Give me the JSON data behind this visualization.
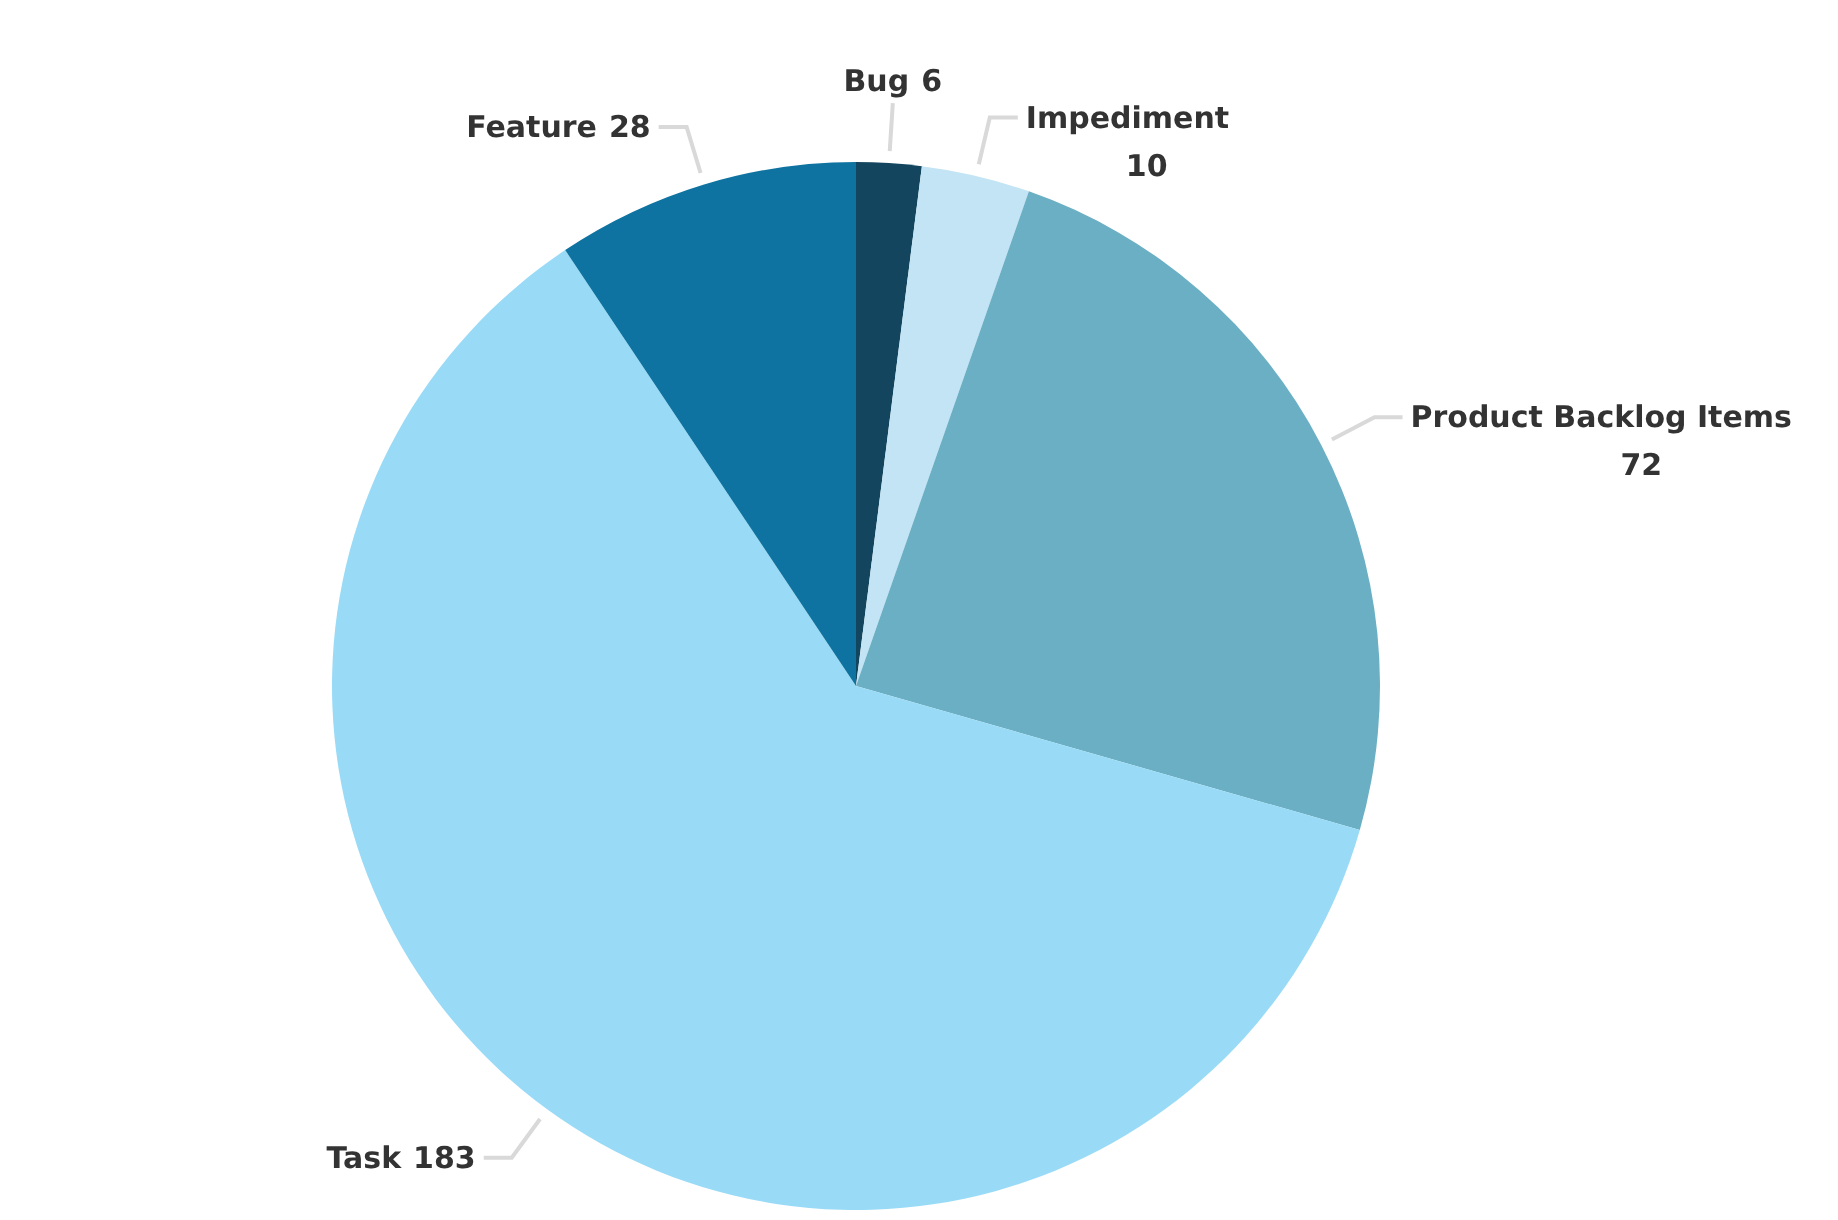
{
  "chart_data": {
    "type": "pie",
    "categories": [
      "Bug",
      "Impediment",
      "Product Backlog Items",
      "Task",
      "Feature"
    ],
    "values": [
      6,
      10,
      72,
      183,
      28
    ],
    "colors": [
      "#13465e",
      "#c2e4f4",
      "#6aafc4",
      "#99dbf7",
      "#0e73a0"
    ],
    "data_labels": true
  }
}
